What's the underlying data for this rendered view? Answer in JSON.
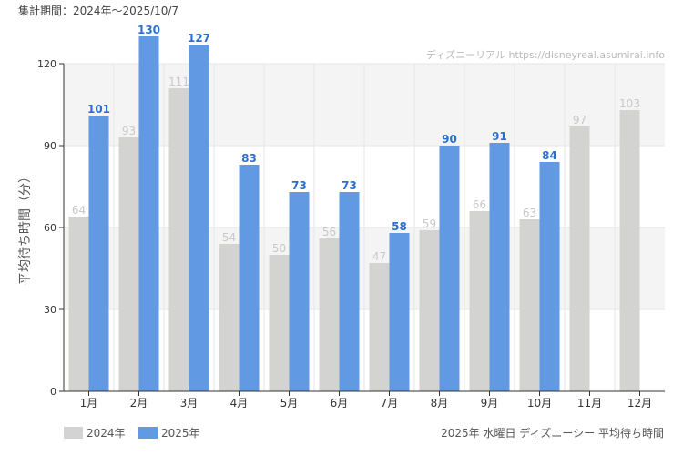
{
  "period": "集計期間：2024年～2025/10/7",
  "watermark": "ディズニーリアル https://disneyreal.asumirai.info",
  "footer_title": "2025年 水曜日 ディズニーシー 平均待ち時間",
  "chart_data": {
    "type": "bar",
    "ylabel": "平均待ち時間（分）",
    "ylim": [
      0,
      120
    ],
    "yticks": [
      0,
      30,
      60,
      90,
      120
    ],
    "categories": [
      "1月",
      "2月",
      "3月",
      "4月",
      "5月",
      "6月",
      "7月",
      "8月",
      "9月",
      "10月",
      "11月",
      "12月"
    ],
    "series": [
      {
        "name": "2024年",
        "color": "#d3d3d1",
        "label_color": "#c8c8c8",
        "values": [
          64,
          93,
          111,
          54,
          50,
          56,
          47,
          59,
          66,
          63,
          97,
          103
        ]
      },
      {
        "name": "2025年",
        "color": "#6199e2",
        "label_color": "#2d6fd0",
        "values": [
          101,
          130,
          127,
          83,
          73,
          73,
          58,
          90,
          91,
          84,
          null,
          null
        ]
      }
    ],
    "grid": true,
    "legend": "bottom-left"
  }
}
